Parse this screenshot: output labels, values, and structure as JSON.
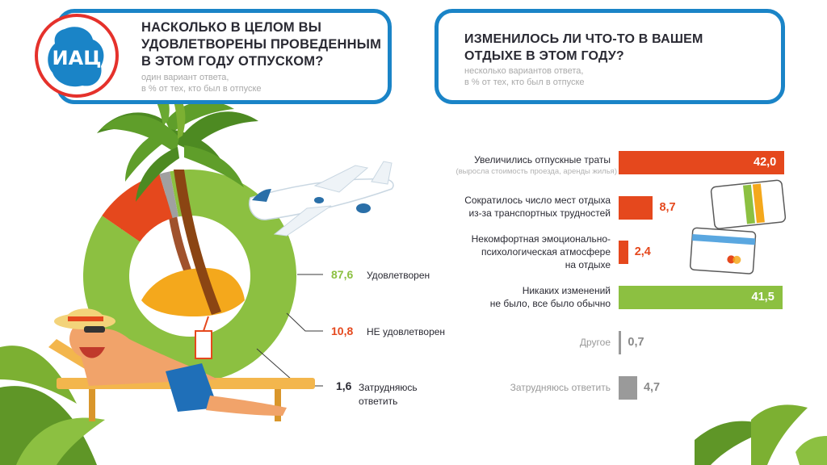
{
  "logo_text": "ИАЦ",
  "left_question": {
    "title_lines": [
      "НАСКОЛЬКО В ЦЕЛОМ ВЫ",
      "УДОВЛЕТВОРЕНЫ ПРОВЕДЕННЫМ",
      "В ЭТОМ ГОДУ ОТПУСКОМ?"
    ],
    "note_lines": [
      "один вариант ответа,",
      "в % от тех, кто был в отпуске"
    ]
  },
  "right_question": {
    "title_lines": [
      "ИЗМЕНИЛОСЬ ЛИ ЧТО-ТО В ВАШЕМ",
      "ОТДЫХЕ В ЭТОМ ГОДУ?"
    ],
    "note_lines": [
      "несколько вариантов ответа,",
      "в % от тех, кто был в отпуске"
    ]
  },
  "colors": {
    "frame": "#1a84c7",
    "green": "#8cc041",
    "orange": "#e5481d",
    "gray": "#9a9a9a",
    "sand": "#f4a81c"
  },
  "chart_data": [
    {
      "type": "pie",
      "variant": "donut",
      "slices": [
        {
          "label": "Удовлетворен",
          "value": 87.6,
          "value_text": "87,6",
          "color": "#8cc041"
        },
        {
          "label": "НЕ удовлетворен",
          "value": 10.8,
          "value_text": "10,8",
          "color": "#e5481d"
        },
        {
          "label_lines": [
            "Затрудняюсь",
            "ответить"
          ],
          "value": 1.6,
          "value_text": "1,6",
          "color": "#a0a0a0"
        }
      ]
    },
    {
      "type": "bar",
      "orientation": "horizontal",
      "xlim": [
        0,
        42
      ],
      "bars": [
        {
          "label_lines": [
            "Увеличились отпускные траты"
          ],
          "sublabel": "(выросла стоимость проезда, аренды жилья)",
          "value": 42.0,
          "value_text": "42,0",
          "color": "#e5481d"
        },
        {
          "label_lines": [
            "Сократилось число мест отдыха",
            "из-за транспортных трудностей"
          ],
          "value": 8.7,
          "value_text": "8,7",
          "color": "#e5481d"
        },
        {
          "label_lines": [
            "Некомфортная эмоционально-",
            "психологическая атмосфере",
            "на отдыхе"
          ],
          "value": 2.4,
          "value_text": "2,4",
          "color": "#e5481d"
        },
        {
          "label_lines": [
            "Никаких изменений",
            "не было, все было обычно"
          ],
          "value": 41.5,
          "value_text": "41,5",
          "color": "#8cc041"
        },
        {
          "label_lines": [
            "Другое"
          ],
          "value": 0.7,
          "value_text": "0,7",
          "color": "#9a9a9a"
        },
        {
          "label_lines": [
            "Затрудняюсь ответить"
          ],
          "value": 4.7,
          "value_text": "4,7",
          "color": "#9a9a9a"
        }
      ]
    }
  ]
}
